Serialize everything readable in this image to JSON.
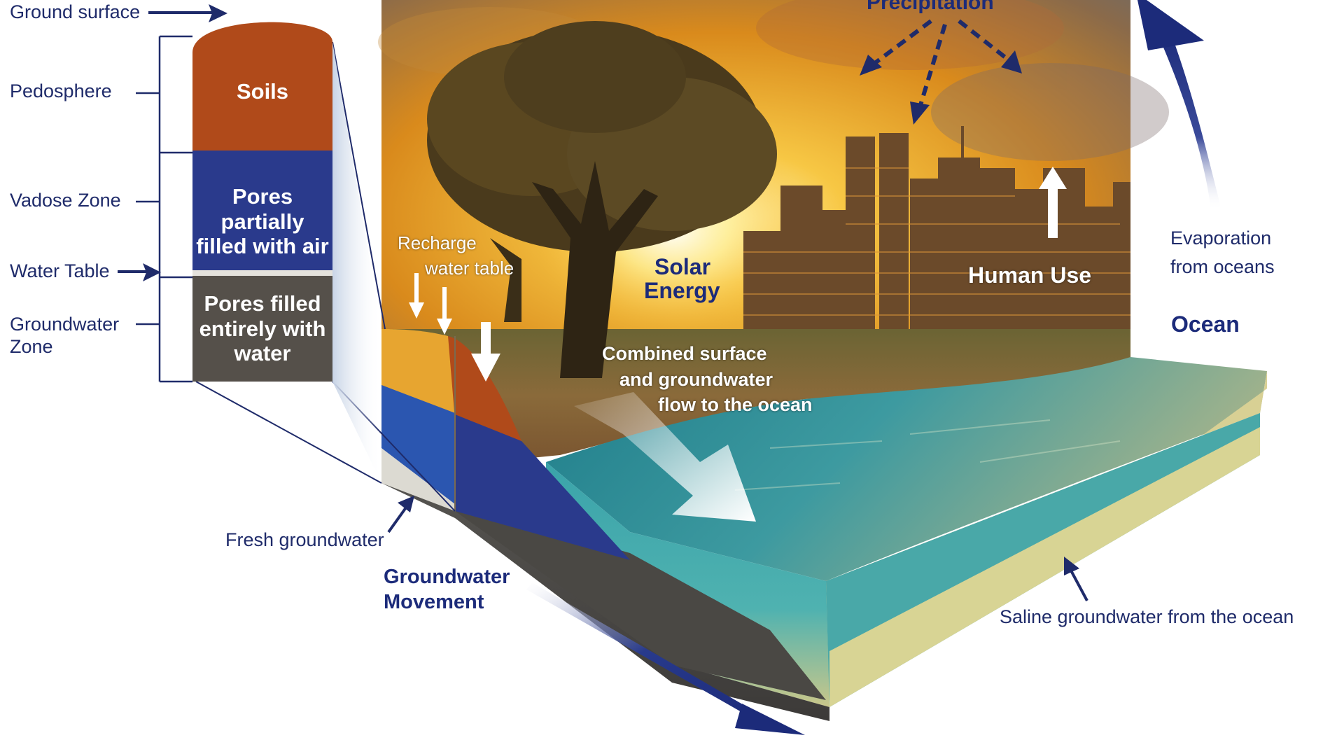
{
  "colors": {
    "navy": "#1f2b6a",
    "soil": "#b04a1a",
    "vadose": "#2a3a8c",
    "groundwater": "#55504a",
    "sky_gold": "#f0b02a",
    "ocean": "#2f9aa8"
  },
  "labels": {
    "ground_surface": "Ground surface",
    "pedosphere": "Pedosphere",
    "vadose_zone": "Vadose Zone",
    "water_table": "Water Table",
    "groundwater_zone_line1": "Groundwater",
    "groundwater_zone_line2": "Zone",
    "soils": "Soils",
    "pores_air_line1": "Pores partially",
    "pores_air_line2": "filled with air",
    "pores_water_line1": "Pores filled",
    "pores_water_line2": "entirely with",
    "pores_water_line3": "water",
    "precipitation": "Precipitation",
    "recharge_line1": "Recharge",
    "recharge_line2": "water table",
    "solar_line1": "Solar",
    "solar_line2": "Energy",
    "human_use": "Human Use",
    "evaporation_line1": "Evaporation",
    "evaporation_line2": "from oceans",
    "ocean": "Ocean",
    "combined_line1": "Combined surface",
    "combined_line2": "and groundwater",
    "combined_line3": "flow to the ocean",
    "fresh_groundwater": "Fresh groundwater",
    "gw_movement_line1": "Groundwater",
    "gw_movement_line2": "Movement",
    "saline": "Saline groundwater from the ocean"
  },
  "icons": [
    "tree-icon",
    "city-skyline-icon",
    "precipitation-arrows-icon",
    "evaporation-arrow-icon",
    "flow-arrow-icon"
  ]
}
